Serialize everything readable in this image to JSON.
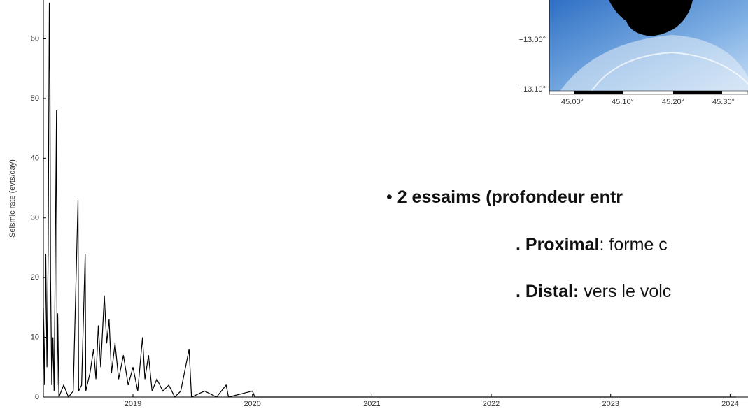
{
  "chart_data": {
    "type": "line",
    "ylabel": "Seismic rate (evts/day)",
    "color": "#000000",
    "x": [
      2018.25,
      2018.26,
      2018.27,
      2018.28,
      2018.29,
      2018.3,
      2018.305,
      2018.31,
      2018.32,
      2018.33,
      2018.34,
      2018.36,
      2018.365,
      2018.37,
      2018.38,
      2018.42,
      2018.46,
      2018.5,
      2018.54,
      2018.545,
      2018.57,
      2018.6,
      2018.605,
      2018.64,
      2018.67,
      2018.69,
      2018.71,
      2018.73,
      2018.76,
      2018.78,
      2018.8,
      2018.82,
      2018.85,
      2018.88,
      2018.92,
      2018.96,
      2019.0,
      2019.04,
      2019.08,
      2019.1,
      2019.13,
      2019.16,
      2019.2,
      2019.25,
      2019.3,
      2019.35,
      2019.4,
      2019.47,
      2019.49,
      2019.6,
      2019.7,
      2019.78,
      2019.8,
      2020.0,
      2020.02,
      2024.05
    ],
    "values": [
      15,
      2,
      24,
      5,
      24,
      66,
      54,
      20,
      2,
      10,
      1,
      48,
      2,
      14,
      0,
      2,
      0,
      1,
      33,
      1,
      2,
      24,
      1,
      4,
      8,
      3,
      12,
      5,
      17,
      9,
      13,
      4,
      9,
      3,
      7,
      2,
      5,
      1,
      10,
      3,
      7,
      1,
      3,
      1,
      2,
      0,
      1,
      8,
      0,
      1,
      0,
      2,
      0,
      1,
      0,
      0
    ],
    "xlim": [
      2018.25,
      2024.15
    ],
    "xticks": [
      2019,
      2020,
      2021,
      2022,
      2023,
      2024
    ],
    "ylim": [
      0,
      66.5
    ],
    "yticks": [
      0,
      10,
      20,
      30,
      40,
      50,
      60
    ]
  },
  "map": {
    "y_labels": [
      "−13.00°",
      "−13.10°"
    ],
    "x_labels": [
      "45.00°",
      "45.10°",
      "45.20°",
      "45.30°"
    ]
  },
  "bullets": [
    {
      "text": "2 essaims (profondeur entr"
    },
    {
      "bold": ". Proximal",
      "text": ": forme c"
    },
    {
      "bold": ". Distal:",
      "text": " vers le volc"
    }
  ]
}
